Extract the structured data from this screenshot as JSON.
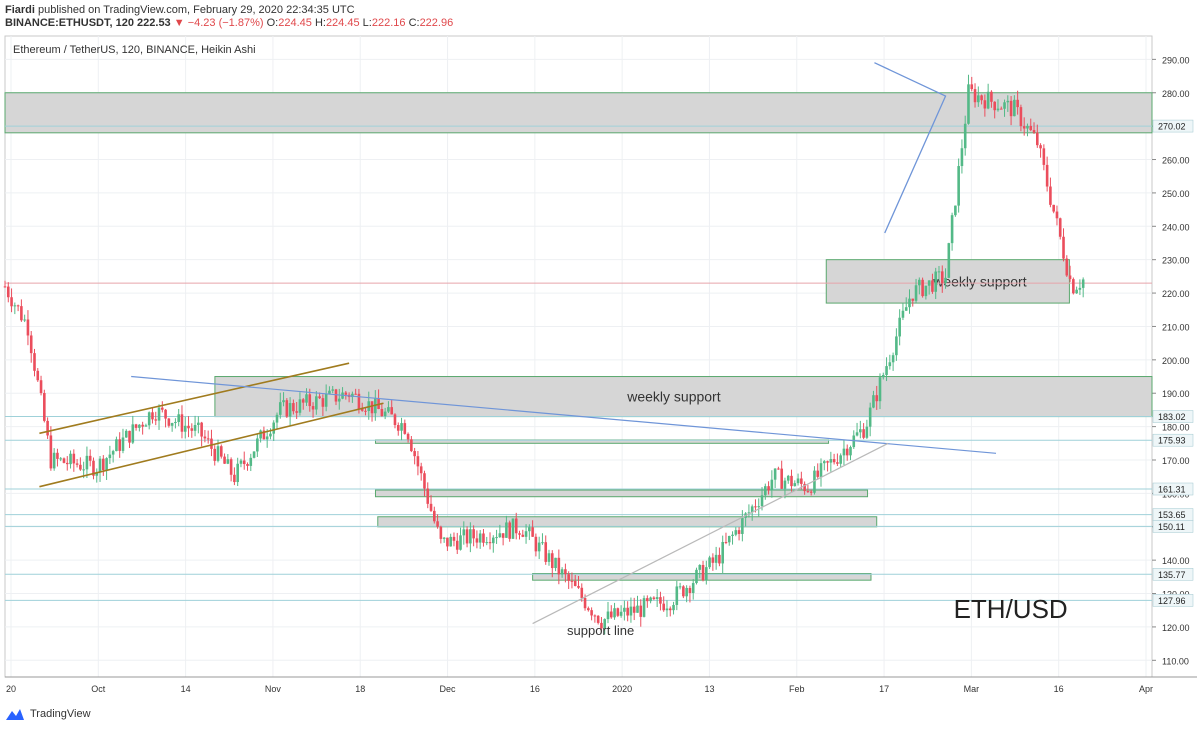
{
  "header": {
    "author": "Fiardi",
    "published_text": "published on TradingView.com, February 29, 2020 22:34:35 UTC",
    "symbol": "BINANCE:ETHUSDT, 120",
    "last": "222.53",
    "change": "▼ −4.23 (−1.87%)",
    "o_label": "O:",
    "o": "224.45",
    "h_label": "H:",
    "h": "224.45",
    "l_label": "L:",
    "l": "222.16",
    "c_label": "C:",
    "c": "222.96"
  },
  "brand": {
    "name": "TradingView"
  },
  "colors": {
    "up": "#53b987",
    "down": "#eb4d5c",
    "zone_fill": "#d6d6d6",
    "zone_border": "#5aa86e",
    "channel": "#a07b1e",
    "trend_blue": "#6f95d8",
    "hline": "#9fd1d9",
    "grid": "#eef0f3",
    "price_line": "#e6a4aa"
  },
  "chart_data": {
    "type": "candlestick",
    "series_name": "Ethereum / TetherUS, 120, BINANCE, Heikin Ashi",
    "watermark": "ETH/USD",
    "ylim": [
      105,
      297
    ],
    "y_ticks": [
      "110.00",
      "120.00",
      "130.00",
      "140.00",
      "150.00",
      "160.00",
      "170.00",
      "180.00",
      "190.00",
      "200.00",
      "210.00",
      "220.00",
      "230.00",
      "240.00",
      "250.00",
      "260.00",
      "270.00",
      "280.00",
      "290.00"
    ],
    "x_tick_labels": [
      "20",
      "Oct",
      "14",
      "Nov",
      "18",
      "Dec",
      "16",
      "2020",
      "13",
      "Feb",
      "17",
      "Mar",
      "16",
      "Apr"
    ],
    "marked_levels": [
      "270.02",
      "183.02",
      "175.93",
      "161.31",
      "153.65",
      "150.11",
      "135.77",
      "127.96"
    ],
    "zones": [
      {
        "low": 268,
        "high": 280,
        "label": ""
      },
      {
        "low": 217,
        "high": 230,
        "label": "weekly support"
      },
      {
        "low": 183,
        "high": 195,
        "label": "weekly support"
      },
      {
        "low": 175,
        "high": 176,
        "label": ""
      },
      {
        "low": 159,
        "high": 161,
        "label": ""
      },
      {
        "low": 150,
        "high": 153,
        "label": ""
      },
      {
        "low": 134,
        "high": 136,
        "label": ""
      }
    ],
    "annotations": [
      "support line"
    ],
    "price_anchors": [
      [
        0.0,
        222
      ],
      [
        0.02,
        210
      ],
      [
        0.04,
        170
      ],
      [
        0.08,
        168
      ],
      [
        0.13,
        185
      ],
      [
        0.17,
        178
      ],
      [
        0.2,
        165
      ],
      [
        0.24,
        185
      ],
      [
        0.3,
        190
      ],
      [
        0.35,
        180
      ],
      [
        0.38,
        145
      ],
      [
        0.45,
        150
      ],
      [
        0.52,
        122
      ],
      [
        0.58,
        128
      ],
      [
        0.62,
        140
      ],
      [
        0.67,
        165
      ],
      [
        0.7,
        162
      ],
      [
        0.75,
        180
      ],
      [
        0.79,
        220
      ],
      [
        0.82,
        225
      ],
      [
        0.84,
        280
      ],
      [
        0.88,
        275
      ],
      [
        0.9,
        265
      ],
      [
        0.93,
        222
      ],
      [
        0.94,
        224
      ]
    ]
  }
}
